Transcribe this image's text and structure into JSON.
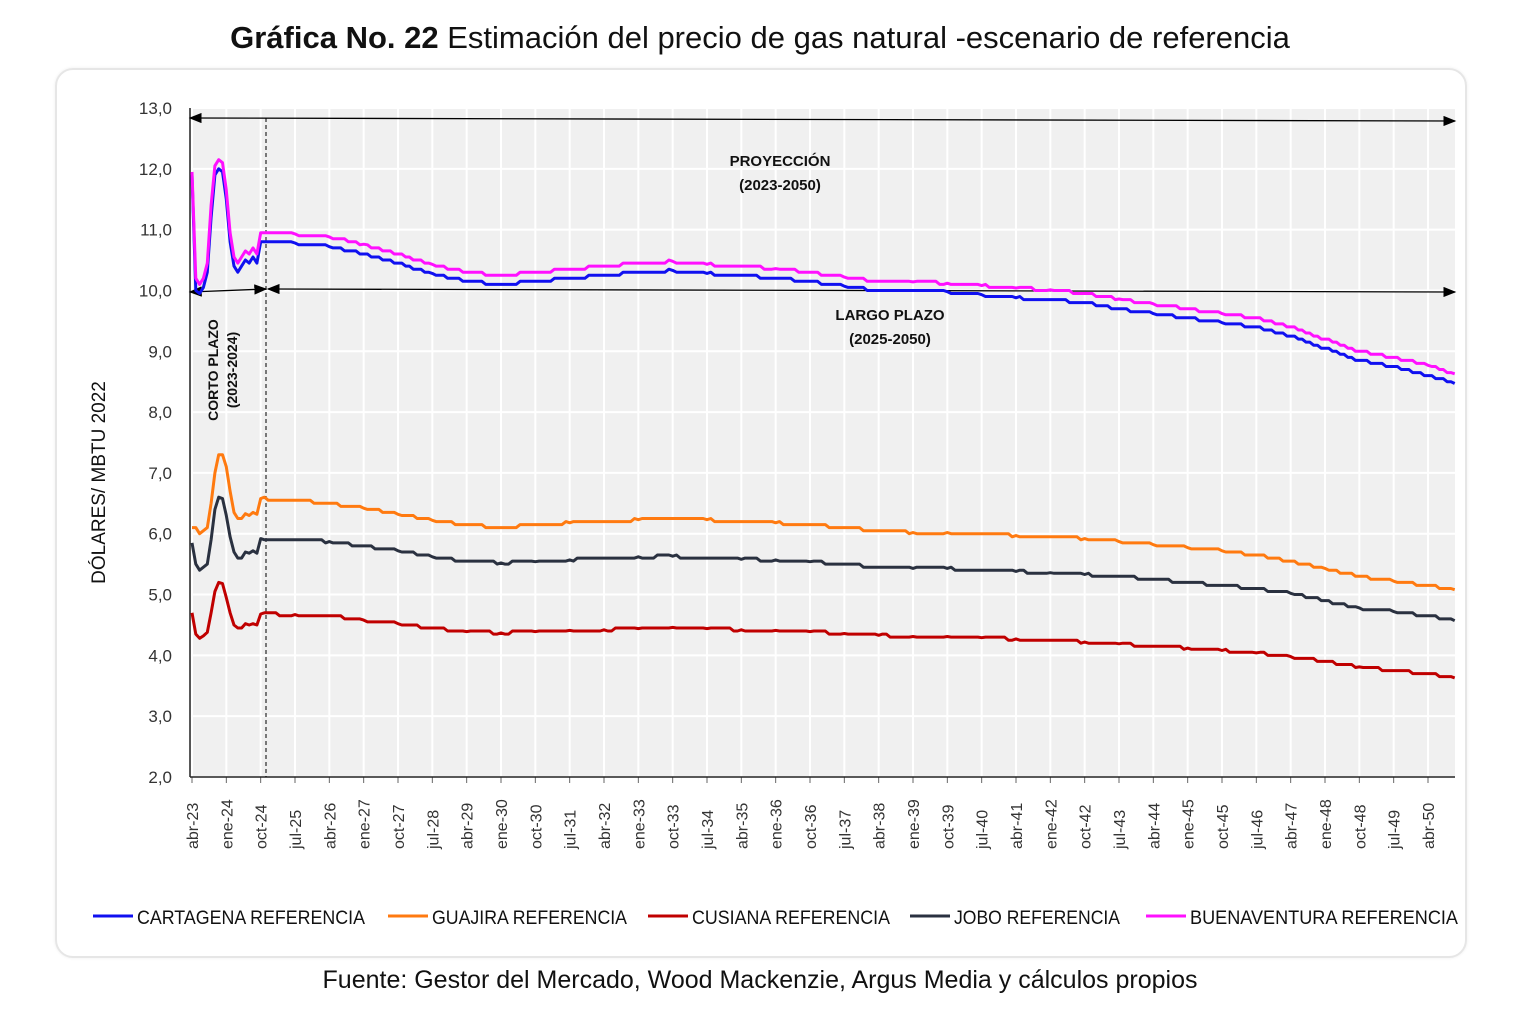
{
  "title_bold": "Gráfica No. 22",
  "title_rest": "Estimación del precio de gas natural -escenario de referencia",
  "source": "Fuente: Gestor del Mercado, Wood Mackenzie, Argus Media y cálculos propios",
  "chart_data": {
    "type": "line",
    "ylabel": "DÓLARES/ MBTU 2022",
    "ylim": [
      2,
      13
    ],
    "yticks": [
      "2,0",
      "3,0",
      "4,0",
      "5,0",
      "6,0",
      "7,0",
      "8,0",
      "9,0",
      "10,0",
      "11,0",
      "12,0",
      "13,0"
    ],
    "x_unit": "months since abr-23",
    "xticks": [
      "abr-23",
      "ene-24",
      "oct-24",
      "jul-25",
      "abr-26",
      "ene-27",
      "oct-27",
      "jul-28",
      "abr-29",
      "ene-30",
      "oct-30",
      "jul-31",
      "abr-32",
      "ene-33",
      "oct-33",
      "jul-34",
      "abr-35",
      "ene-36",
      "oct-36",
      "jul-37",
      "abr-38",
      "ene-39",
      "oct-39",
      "jul-40",
      "abr-41",
      "ene-42",
      "oct-42",
      "jul-43",
      "abr-44",
      "ene-45",
      "oct-45",
      "jul-46",
      "abr-47",
      "ene-48",
      "oct-48",
      "jul-49",
      "abr-50"
    ],
    "x": [
      0,
      1,
      2,
      3,
      4,
      5,
      6,
      7,
      8,
      9,
      10,
      11,
      12,
      13,
      14,
      15,
      16,
      17,
      18,
      27,
      36,
      45,
      54,
      63,
      72,
      81,
      90,
      99,
      108,
      117,
      126,
      135,
      144,
      153,
      162,
      171,
      180,
      189,
      198,
      207,
      216,
      225,
      234,
      243,
      252,
      261,
      270,
      279,
      288,
      297,
      306,
      315,
      324,
      331
    ],
    "series": [
      {
        "name": "CARTAGENA REFERENCIA",
        "color": "#1010f0",
        "values": [
          11.9,
          10.0,
          9.95,
          10.05,
          10.3,
          11.2,
          11.9,
          12.0,
          11.95,
          11.5,
          10.8,
          10.4,
          10.3,
          10.4,
          10.5,
          10.45,
          10.55,
          10.45,
          10.8,
          10.78,
          10.72,
          10.6,
          10.45,
          10.28,
          10.15,
          10.1,
          10.15,
          10.2,
          10.25,
          10.3,
          10.33,
          10.28,
          10.25,
          10.2,
          10.15,
          10.07,
          10.0,
          10.0,
          9.98,
          9.93,
          9.88,
          9.85,
          9.8,
          9.7,
          9.62,
          9.55,
          9.47,
          9.4,
          9.25,
          9.05,
          8.85,
          8.75,
          8.6,
          8.47
        ]
      },
      {
        "name": "GUAJIRA REFERENCIA",
        "color": "#ff7a10",
        "values": [
          6.1,
          6.1,
          6.0,
          6.05,
          6.1,
          6.5,
          7.0,
          7.3,
          7.3,
          7.1,
          6.7,
          6.35,
          6.25,
          6.25,
          6.33,
          6.3,
          6.35,
          6.32,
          6.58,
          6.55,
          6.5,
          6.42,
          6.32,
          6.22,
          6.15,
          6.1,
          6.15,
          6.18,
          6.2,
          6.23,
          6.25,
          6.23,
          6.2,
          6.18,
          6.15,
          6.1,
          6.05,
          6.02,
          6.02,
          6.0,
          5.97,
          5.95,
          5.92,
          5.87,
          5.82,
          5.77,
          5.72,
          5.65,
          5.55,
          5.43,
          5.3,
          5.22,
          5.15,
          5.08
        ]
      },
      {
        "name": "CUSIANA REFERENCIA",
        "color": "#c00000",
        "values": [
          4.7,
          4.35,
          4.28,
          4.32,
          4.38,
          4.7,
          5.05,
          5.2,
          5.18,
          4.95,
          4.7,
          4.5,
          4.45,
          4.45,
          4.52,
          4.5,
          4.52,
          4.5,
          4.68,
          4.67,
          4.65,
          4.58,
          4.52,
          4.45,
          4.39,
          4.37,
          4.39,
          4.41,
          4.42,
          4.44,
          4.46,
          4.44,
          4.42,
          4.41,
          4.39,
          4.36,
          4.33,
          4.31,
          4.31,
          4.29,
          4.27,
          4.25,
          4.22,
          4.19,
          4.15,
          4.12,
          4.08,
          4.04,
          3.98,
          3.9,
          3.81,
          3.75,
          3.7,
          3.63
        ]
      },
      {
        "name": "JOBO REFERENCIA",
        "color": "#2a3140",
        "values": [
          5.85,
          5.5,
          5.4,
          5.45,
          5.5,
          5.9,
          6.4,
          6.6,
          6.58,
          6.3,
          5.95,
          5.7,
          5.6,
          5.6,
          5.7,
          5.68,
          5.72,
          5.68,
          5.92,
          5.9,
          5.87,
          5.8,
          5.72,
          5.62,
          5.55,
          5.52,
          5.54,
          5.57,
          5.6,
          5.62,
          5.63,
          5.6,
          5.58,
          5.57,
          5.54,
          5.5,
          5.45,
          5.43,
          5.43,
          5.4,
          5.38,
          5.36,
          5.33,
          5.3,
          5.25,
          5.2,
          5.15,
          5.1,
          5.02,
          4.9,
          4.78,
          4.72,
          4.65,
          4.57
        ]
      },
      {
        "name": "BUENAVENTURA REFERENCIA",
        "color": "#ff10ff",
        "values": [
          11.95,
          10.2,
          10.1,
          10.2,
          10.45,
          11.4,
          12.05,
          12.15,
          12.1,
          11.65,
          10.95,
          10.55,
          10.45,
          10.55,
          10.65,
          10.6,
          10.7,
          10.6,
          10.95,
          10.93,
          10.88,
          10.76,
          10.6,
          10.43,
          10.3,
          10.25,
          10.3,
          10.35,
          10.4,
          10.45,
          10.48,
          10.43,
          10.4,
          10.36,
          10.3,
          10.22,
          10.15,
          10.14,
          10.12,
          10.08,
          10.04,
          10.01,
          9.95,
          9.86,
          9.78,
          9.7,
          9.62,
          9.55,
          9.4,
          9.2,
          9.0,
          8.9,
          8.77,
          8.63
        ]
      }
    ],
    "annotations": {
      "proyeccion": [
        "PROYECCIÓN",
        "(2023-2050)"
      ],
      "largo_plazo": [
        "LARGO PLAZO",
        "(2025-2050)"
      ],
      "corto_plazo": [
        "CORTO PLAZO",
        "(2023-2024)"
      ]
    },
    "legend_position": "bottom",
    "grid": true
  }
}
